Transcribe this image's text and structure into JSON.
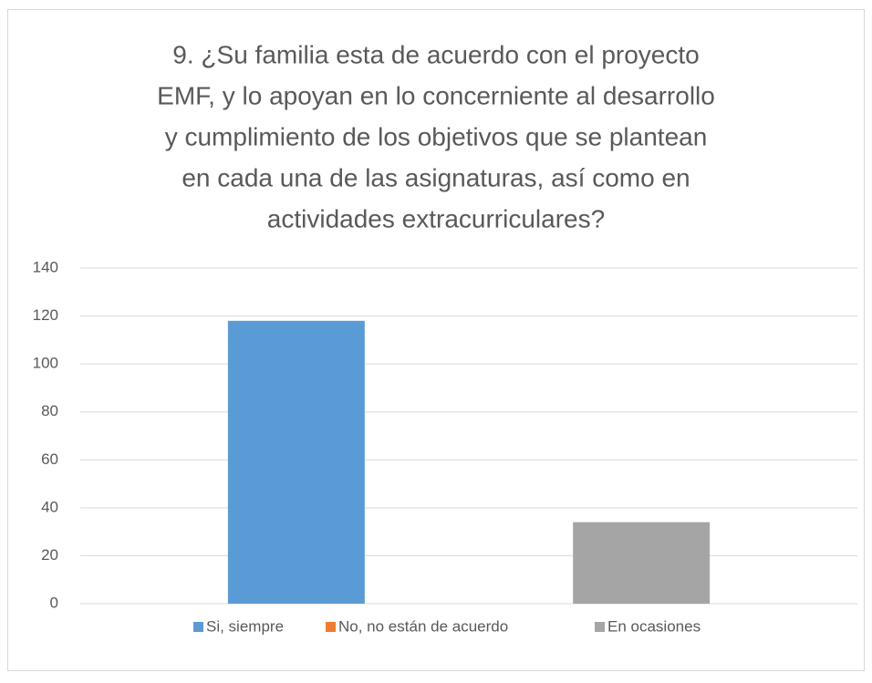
{
  "chart_data": {
    "type": "bar",
    "title": [
      "9. ¿Su familia esta de acuerdo con el proyecto",
      "EMF, y lo apoyan en lo concerniente al desarrollo",
      "y cumplimiento de los objetivos que se plantean",
      "en cada una de las asignaturas, así como en",
      "actividades extracurriculares?"
    ],
    "categories": [
      null
    ],
    "series": [
      {
        "name": "Si, siempre",
        "color": "#5b9bd5",
        "values": [
          118
        ]
      },
      {
        "name": "No, no están de acuerdo",
        "color": "#ed7d31",
        "values": [
          0
        ]
      },
      {
        "name": "En ocasiones",
        "color": "#a5a5a5",
        "values": [
          34
        ]
      }
    ],
    "ylim": [
      0,
      140
    ],
    "yticks": [
      0,
      20,
      40,
      60,
      80,
      100,
      120,
      140
    ],
    "grid": true,
    "legend": "bottom"
  }
}
